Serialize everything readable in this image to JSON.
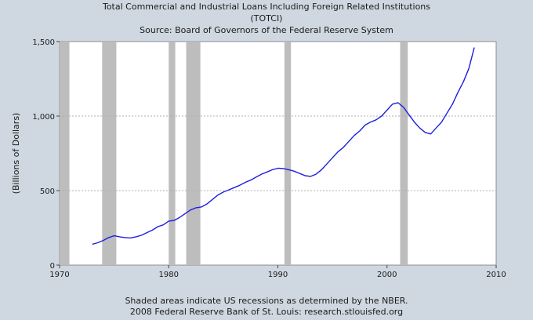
{
  "chart_data": {
    "type": "line",
    "title": "Total Commercial and Industrial Loans Including Foreign Related Institutions",
    "subtitle": "(TOTCI)",
    "source": "Source: Board of Governors of the Federal Reserve System",
    "xlabel": "",
    "ylabel": "(Billions of Dollars)",
    "xlim": [
      1970,
      2010
    ],
    "ylim": [
      0,
      1500
    ],
    "x_ticks": [
      1970,
      1980,
      1990,
      2000,
      2010
    ],
    "x_tick_labels": [
      "1970",
      "1980",
      "1990",
      "2000",
      "2010"
    ],
    "y_ticks": [
      0,
      500,
      1000,
      1500
    ],
    "y_tick_labels": [
      "0",
      "500",
      "1,000",
      "1,500"
    ],
    "grid": true,
    "colors": {
      "line": "#1f1fe0",
      "recession": "#bdbdbd",
      "plot_bg": "#ffffff",
      "frame_bg": "#cfd8e0",
      "grid": "#b0b0b0"
    },
    "recessions": [
      {
        "start": 1970.0,
        "end": 1970.9
      },
      {
        "start": 1973.9,
        "end": 1975.2
      },
      {
        "start": 1980.0,
        "end": 1980.6
      },
      {
        "start": 1981.6,
        "end": 1982.9
      },
      {
        "start": 1990.6,
        "end": 1991.2
      },
      {
        "start": 2001.2,
        "end": 2001.9
      }
    ],
    "series": [
      {
        "name": "TOTCI",
        "x": [
          1973.0,
          1973.5,
          1974.0,
          1974.5,
          1975.0,
          1975.5,
          1976.0,
          1976.5,
          1977.0,
          1977.5,
          1978.0,
          1978.5,
          1979.0,
          1979.5,
          1980.0,
          1980.5,
          1981.0,
          1981.5,
          1982.0,
          1982.5,
          1983.0,
          1983.5,
          1984.0,
          1984.5,
          1985.0,
          1985.5,
          1986.0,
          1986.5,
          1987.0,
          1987.5,
          1988.0,
          1988.5,
          1989.0,
          1989.5,
          1990.0,
          1990.5,
          1991.0,
          1991.5,
          1992.0,
          1992.5,
          1993.0,
          1993.5,
          1994.0,
          1994.5,
          1995.0,
          1995.5,
          1996.0,
          1996.5,
          1997.0,
          1997.5,
          1998.0,
          1998.5,
          1999.0,
          1999.5,
          2000.0,
          2000.5,
          2001.0,
          2001.5,
          2002.0,
          2002.5,
          2003.0,
          2003.5,
          2004.0,
          2004.5,
          2005.0,
          2005.5,
          2006.0,
          2006.5,
          2007.0,
          2007.5,
          2008.0
        ],
        "values": [
          140,
          150,
          165,
          185,
          197,
          190,
          185,
          182,
          190,
          200,
          218,
          235,
          258,
          270,
          295,
          300,
          320,
          345,
          370,
          385,
          390,
          410,
          440,
          470,
          490,
          505,
          520,
          535,
          555,
          570,
          590,
          610,
          625,
          640,
          650,
          648,
          640,
          630,
          615,
          600,
          595,
          610,
          640,
          680,
          720,
          760,
          790,
          830,
          870,
          900,
          940,
          960,
          975,
          1000,
          1040,
          1080,
          1090,
          1060,
          1010,
          960,
          920,
          890,
          880,
          920,
          960,
          1020,
          1080,
          1160,
          1230,
          1320,
          1460
        ]
      }
    ],
    "notes": [
      "Shaded areas indicate US recessions as determined by the NBER.",
      "2008 Federal Reserve Bank of St. Louis: research.stlouisfed.org"
    ]
  }
}
